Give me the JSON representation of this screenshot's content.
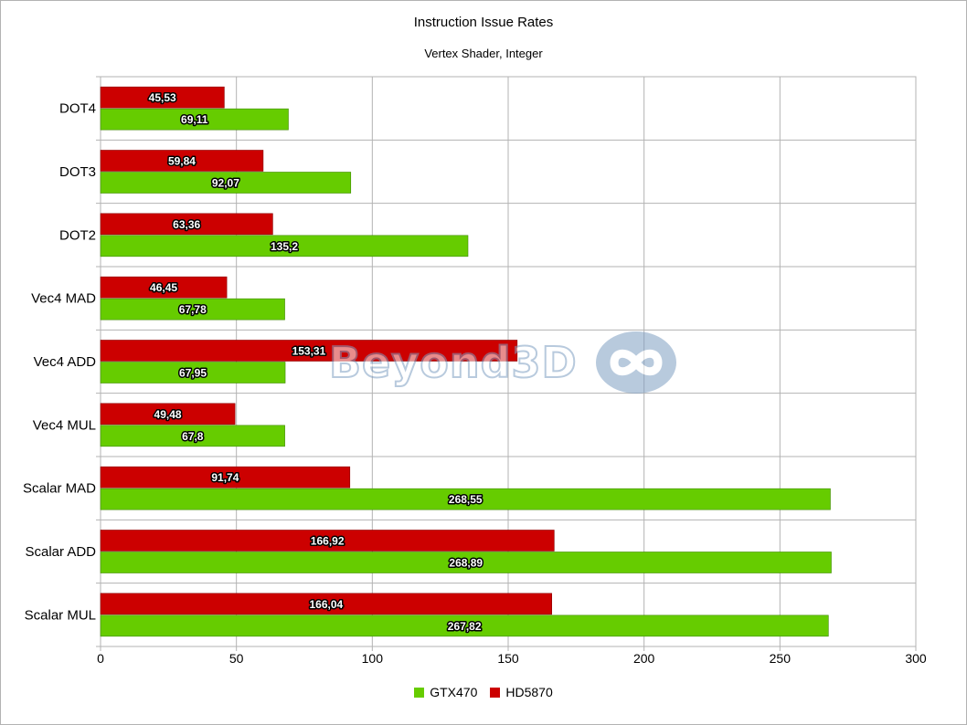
{
  "chart_data": {
    "type": "bar",
    "orientation": "horizontal",
    "title": "Instruction Issue Rates",
    "subtitle": "Vertex Shader, Integer",
    "xlabel": "",
    "ylabel": "",
    "xlim": [
      0,
      300
    ],
    "x_ticks": [
      "0",
      "50",
      "100",
      "150",
      "200",
      "250",
      "300"
    ],
    "grid": true,
    "legend_position": "bottom",
    "categories": [
      "DOT4",
      "DOT3",
      "DOT2",
      "Vec4 MAD",
      "Vec4 ADD",
      "Vec4 MUL",
      "Scalar MAD",
      "Scalar ADD",
      "Scalar MUL"
    ],
    "series": [
      {
        "name": "HD5870",
        "color": "#cc0000",
        "values": [
          45.53,
          59.84,
          63.36,
          46.45,
          153.31,
          49.48,
          91.74,
          166.92,
          166.04
        ],
        "labels": [
          "45,53",
          "59,84",
          "63,36",
          "46,45",
          "153,31",
          "49,48",
          "91,74",
          "166,92",
          "166,04"
        ]
      },
      {
        "name": "GTX470",
        "color": "#66cc00",
        "values": [
          69.11,
          92.07,
          135.2,
          67.78,
          67.95,
          67.8,
          268.55,
          268.89,
          267.82
        ],
        "labels": [
          "69,11",
          "92,07",
          "135,2",
          "67,78",
          "67,95",
          "67,8",
          "268,55",
          "268,89",
          "267,82"
        ]
      }
    ],
    "legend": [
      "GTX470",
      "HD5870"
    ]
  },
  "watermark": {
    "text": "Beyond3D",
    "icon": "infinity-logo-icon",
    "color": "#7f9fc3"
  }
}
